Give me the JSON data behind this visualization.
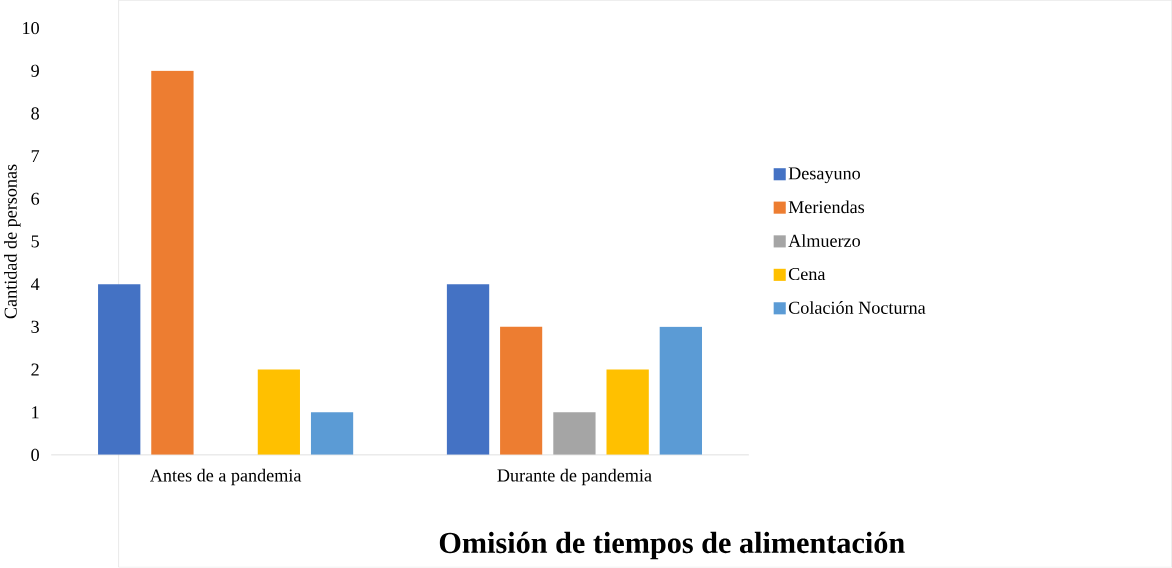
{
  "chart_data": {
    "type": "bar",
    "title": "Omisión de tiempos de alimentación",
    "ylabel": "Cantidad de personas",
    "categories": [
      "Antes de a pandemia",
      "Durante de pandemia"
    ],
    "series": [
      {
        "name": "Desayuno",
        "color": "#4472c4",
        "values": [
          4,
          4
        ]
      },
      {
        "name": "Meriendas",
        "color": "#ed7d31",
        "values": [
          9,
          3
        ]
      },
      {
        "name": "Almuerzo",
        "color": "#a5a5a5",
        "values": [
          0,
          1
        ]
      },
      {
        "name": "Cena",
        "color": "#ffc000",
        "values": [
          2,
          2
        ]
      },
      {
        "name": "Colación Nocturna",
        "color": "#5b9bd5",
        "values": [
          1,
          3
        ]
      }
    ],
    "ylim": [
      0,
      10
    ],
    "yticks": [
      0,
      1,
      2,
      3,
      4,
      5,
      6,
      7,
      8,
      9,
      10
    ],
    "legend": "right"
  }
}
